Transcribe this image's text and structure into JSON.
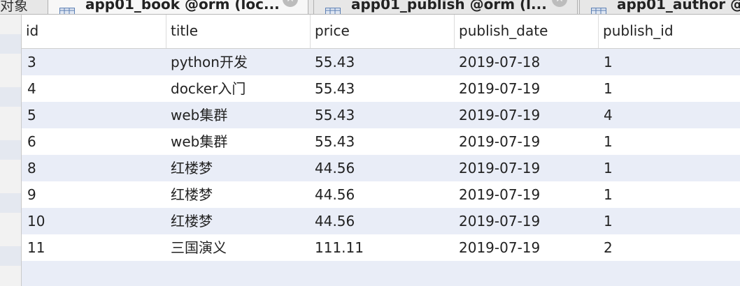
{
  "tabs": {
    "left_label": "对象",
    "items": [
      {
        "label": "app01_book @orm (loc..."
      },
      {
        "label": "app01_publish @orm (l..."
      },
      {
        "label": "app01_author @"
      }
    ]
  },
  "table": {
    "columns": [
      "id",
      "title",
      "price",
      "publish_date",
      "publish_id"
    ],
    "rows": [
      [
        "3",
        "python开发",
        "55.43",
        "2019-07-18",
        "1"
      ],
      [
        "4",
        "docker入门",
        "55.43",
        "2019-07-19",
        "1"
      ],
      [
        "5",
        "web集群",
        "55.43",
        "2019-07-19",
        "4"
      ],
      [
        "6",
        "web集群",
        "55.43",
        "2019-07-19",
        "1"
      ],
      [
        "8",
        "红楼梦",
        "44.56",
        "2019-07-19",
        "1"
      ],
      [
        "9",
        "红楼梦",
        "44.56",
        "2019-07-19",
        "1"
      ],
      [
        "10",
        "红楼梦",
        "44.56",
        "2019-07-19",
        "1"
      ],
      [
        "11",
        "三国演义",
        "111.11",
        "2019-07-19",
        "2"
      ]
    ]
  },
  "colors": {
    "stripe": "#e9edf7",
    "header_bg": "#ffffff",
    "tabbar_bg": "#e7e7e7"
  }
}
